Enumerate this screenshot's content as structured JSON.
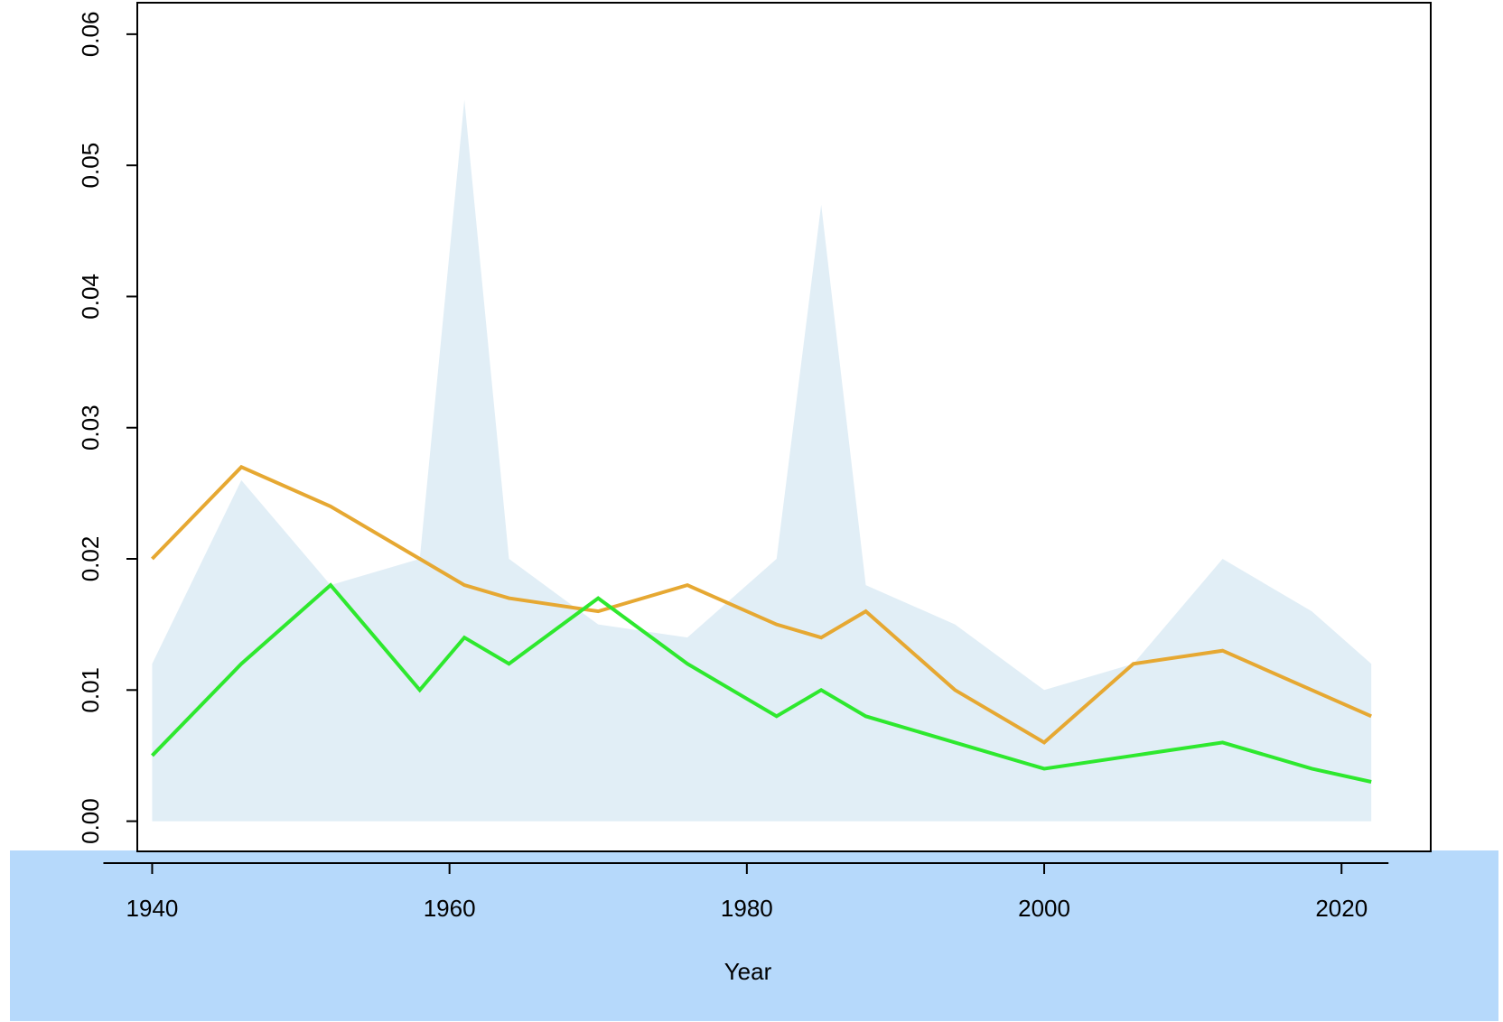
{
  "chart_data": {
    "type": "line",
    "x": [
      1940,
      1946,
      1952,
      1958,
      1961,
      1964,
      1970,
      1976,
      1982,
      1985,
      1988,
      1994,
      2000,
      2006,
      2012,
      2018,
      2022
    ],
    "series": [
      {
        "color": "#e1eef6",
        "area": true,
        "values": [
          0.012,
          0.026,
          0.018,
          0.02,
          0.055,
          0.02,
          0.015,
          0.014,
          0.02,
          0.047,
          0.018,
          0.015,
          0.01,
          0.012,
          0.02,
          0.016,
          0.012
        ]
      },
      {
        "color": "#e6a832",
        "values": [
          0.02,
          0.027,
          0.024,
          0.02,
          0.018,
          0.017,
          0.016,
          0.018,
          0.015,
          0.014,
          0.016,
          0.01,
          0.006,
          0.012,
          0.013,
          0.01,
          0.008
        ]
      },
      {
        "color": "#2ee82e",
        "values": [
          0.005,
          0.012,
          0.018,
          0.01,
          0.014,
          0.012,
          0.017,
          0.012,
          0.008,
          0.01,
          0.008,
          0.006,
          0.004,
          0.005,
          0.006,
          0.004,
          0.003
        ]
      }
    ],
    "xlabel": "Year",
    "xlim": [
      1939,
      2026
    ],
    "xticks": [
      1940,
      1960,
      1980,
      2000,
      2020
    ],
    "ylim": [
      -0.0023,
      0.0624
    ],
    "yticks": [
      {
        "value": 0,
        "label": "0.00"
      },
      0.01,
      0.02,
      0.03,
      0.04,
      0.05,
      0.06
    ]
  }
}
